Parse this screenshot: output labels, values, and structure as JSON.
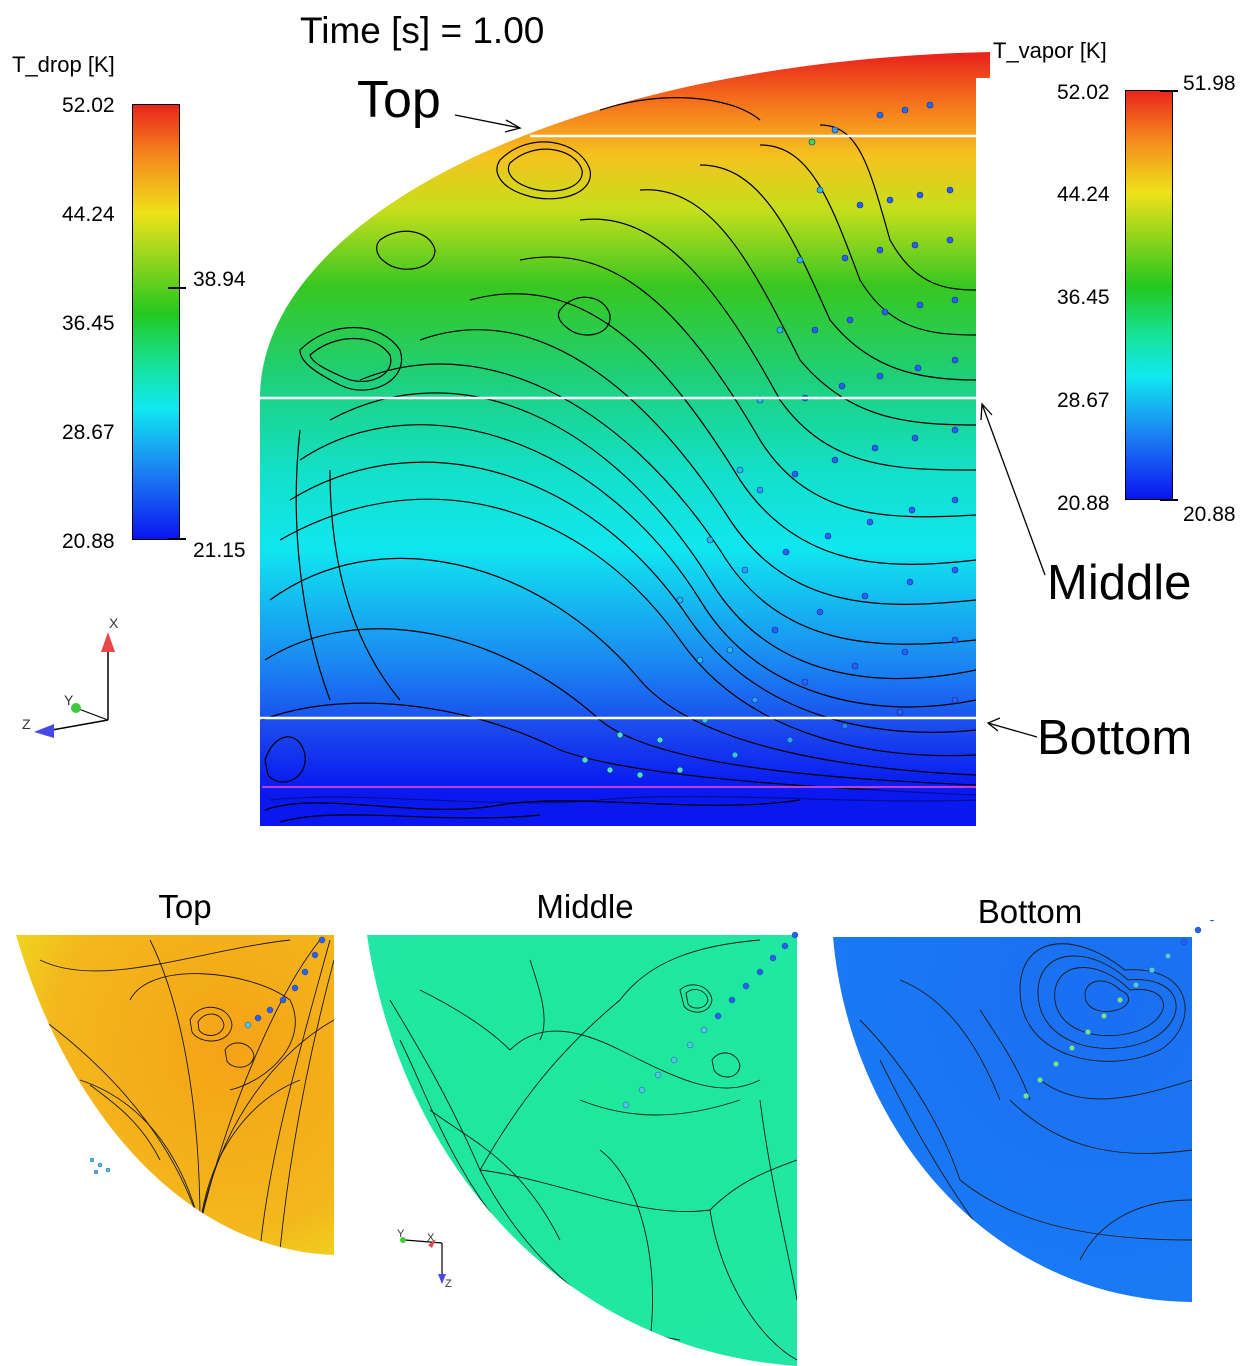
{
  "header": {
    "time_label": "Time [s] = 1.00"
  },
  "colors": {
    "hot": "#e8251b",
    "orange": "#f6a623",
    "yellow": "#e9e41a",
    "green": "#27c21f",
    "cyan": "#12e6ee",
    "blue": "#1a47ee",
    "deep_blue": "#0a15f0",
    "top_slice": "#f2b21c",
    "middle_slice": "#1ee89a",
    "bottom_slice": "#1a73f5"
  },
  "legend_drop": {
    "title": "T_drop [K]",
    "ticks": [
      "52.02",
      "44.24",
      "36.45",
      "28.67",
      "20.88"
    ],
    "marker_upper": "38.94",
    "marker_lower": "21.15"
  },
  "legend_vapor": {
    "title": "T_vapor [K]",
    "ticks": [
      "52.02",
      "44.24",
      "36.45",
      "28.67",
      "20.88"
    ],
    "marker_upper": "51.98",
    "marker_lower": "20.88"
  },
  "main_view": {
    "callout_top": "Top",
    "callout_middle": "Middle",
    "callout_bottom": "Bottom"
  },
  "triad_main": {
    "x": "X",
    "y": "Y",
    "z": "Z"
  },
  "triad_slice": {
    "x": "X",
    "y": "Y",
    "z": "Z"
  },
  "slices": {
    "top_title": "Top",
    "middle_title": "Middle",
    "bottom_title": "Bottom"
  }
}
